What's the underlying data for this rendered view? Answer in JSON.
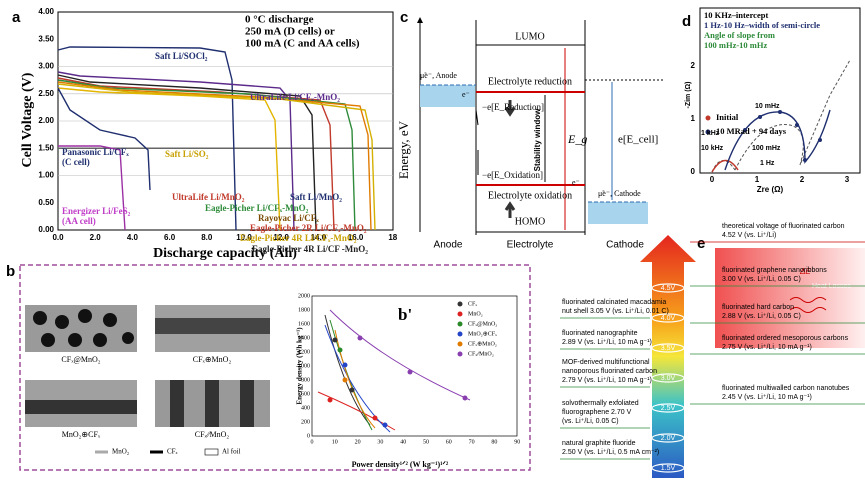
{
  "panel_a": {
    "label": "a",
    "y_title": "Cell Voltage (V)",
    "x_title": "Discharge capacity (Ah)",
    "yticks": [
      "0.00",
      "0.50",
      "1.00",
      "1.50",
      "2.00",
      "2.50",
      "3.00",
      "3.50",
      "4.00"
    ],
    "xticks": [
      "0.0",
      "2.0",
      "4.0",
      "6.0",
      "8.0",
      "10.0",
      "12.0",
      "14.0",
      "16.0",
      "18"
    ],
    "conditions": [
      "0 °C discharge",
      "250 mA (D cells) or",
      "100 mA (C and AA cells)"
    ],
    "curve_labels": [
      "Saft Li/SOCl₂",
      "UltraLife Li/CFₓ-MnO₂",
      "Panasonic Li/CFₓ",
      "(C cell)",
      "Saft Li/SO₂",
      "UltraLife Li/MnO₂",
      "Saft Li/MnO₂",
      "Eagle-Picher Li/CFₓ-MnO₂",
      "Rayovac Li/CFₓ",
      "Eagle-Picher 2R Li/CFₓ-MnO₂",
      "Eagle-Picher 4R Li/CFₓ-MnO₂",
      "Eagle-Picher 4R Li/CF -MnO₂",
      "Energizer Li/FeS₂",
      "(AA cell)"
    ]
  },
  "panel_b": {
    "label": "b",
    "images": [
      "CFₓ@MnO₂",
      "CFₓ⊕MnO₂",
      "MnO₂⊕CFₓ",
      "CFₓ∕∕MnO₂"
    ],
    "legend": [
      "MnO₂",
      "CFₓ",
      "Al foil"
    ],
    "sub_label": "b'",
    "y_title": "Energy density (Wh kg⁻¹)",
    "x_title": "Power density¹ᐟ² (W kg⁻¹)¹ᐟ²",
    "yticks": [
      "0",
      "200",
      "400",
      "600",
      "800",
      "1000",
      "1200",
      "1400",
      "1600",
      "1800",
      "2000"
    ],
    "xticks": [
      "0",
      "10",
      "20",
      "30",
      "40",
      "50",
      "60",
      "70",
      "80",
      "90"
    ],
    "series": [
      "CFₓ",
      "MnO₂",
      "CFₓ@MnO₂",
      "MnO₂⊕CFₓ",
      "CFₓ⊕MnO₂",
      "CFₓ∕∕MnO₂"
    ]
  },
  "panel_c": {
    "label": "c",
    "y_title": "Energy, eV",
    "lumo": "LUMO",
    "homo": "HOMO",
    "reduction": "Electrolyte reduction",
    "oxidation": "Electrolyte oxidation",
    "e_reduction": "−e[E_Reduction]",
    "e_oxidation": "−e[E_Oxidation]",
    "window": "Stability window",
    "eg": "E_g",
    "ecell": "e[E_cell]",
    "mu_anode": "μ̃e⁻, Anode",
    "mu_cathode": "μ̃e⁻, Cathode",
    "electron": "e⁻",
    "columns": [
      "Anode",
      "Electrolyte",
      "Cathode"
    ]
  },
  "panel_d": {
    "label": "d",
    "notes": [
      "10 KHz–intercept",
      "1 Hz-10 Hz–width of semi-circle",
      "Angle of slope from",
      "100 mHz-10 mHz"
    ],
    "legend": [
      "Initial",
      "10 MRad + 94 days"
    ],
    "points": [
      "10 mHz",
      "1 kHz",
      "10 kHz",
      "100 mHz",
      "1 Hz"
    ],
    "y_title": "-Zim (Ω)",
    "x_title": "Zre (Ω)",
    "xticks": [
      "0",
      "1",
      "2",
      "3"
    ],
    "yticks": [
      "0",
      "1",
      "2"
    ]
  },
  "panel_e": {
    "label": "e",
    "levels": [
      "4.5V",
      "4.0V",
      "3.5V",
      "3.0V",
      "2.5V",
      "2.0V",
      "1.5V"
    ],
    "heat": "Heat  Losses",
    "delta": "ΔE",
    "right": [
      [
        "theoretical voltage of fluorinated carbon",
        "4.52 V (vs. Li⁺/Li)"
      ],
      [
        "fluorinated graphene nanoribbons",
        "3.00 V (vs. Li⁺/Li, 0.05 C)"
      ],
      [
        "fluorinated hard carbon",
        "2.88 V (vs. Li⁺/Li, 0.05 C)"
      ],
      [
        "fluorinated ordered mesoporous carbons",
        "2.75 V (vs. Li⁺/Li, 10 mA g⁻¹)"
      ],
      [
        "fluorinated multiwalled carbon nanotubes",
        "2.45 V (vs. Li⁺/Li, 10 mA g⁻¹)"
      ]
    ],
    "left": [
      [
        "fluorinated calcinated macadamia",
        "nut shell 3.05 V (vs. Li⁺/Li, 0.01 C)"
      ],
      [
        "fluorinated nanographite",
        "2.89 V (vs. Li⁺/Li, 10 mA g⁻¹)"
      ],
      [
        "MOF-derived multifunctional",
        "nanoporous fluorinated carbon",
        "2.79 V (vs. Li⁺/Li, 10 mA g⁻¹)"
      ],
      [
        "solvothermally exfoliated",
        "fluorographene 2.70 V",
        "(vs. Li⁺/Li, 0.05 C)"
      ],
      [
        "natural graphite fluoride",
        "2.50 V (vs. Li⁺/Li, 0.5 mA cm⁻²)"
      ]
    ]
  }
}
